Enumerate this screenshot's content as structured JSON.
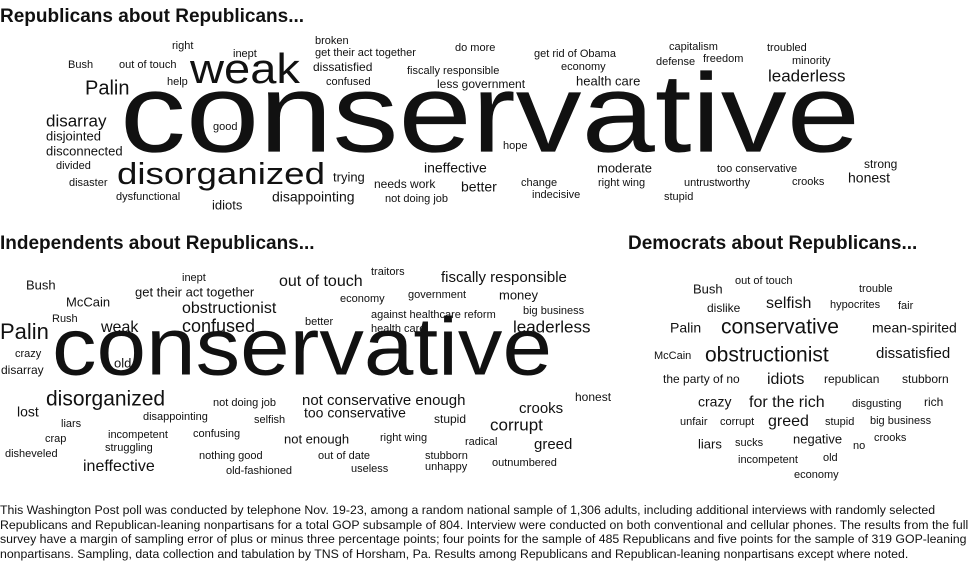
{
  "sections": [
    {
      "title": "Republicans about Republicans...",
      "words": [
        "right",
        "inept",
        "broken",
        "get their act together",
        "do more",
        "get rid of Obama",
        "capitalism",
        "troubled",
        "Bush",
        "out of touch",
        "dissatisfied",
        "fiscally responsible",
        "economy",
        "defense",
        "freedom",
        "minority",
        "weak",
        "help",
        "confused",
        "less government",
        "health care",
        "leaderless",
        "Palin",
        "conservative",
        "disarray",
        "good",
        "disjointed",
        "disconnected",
        "hope",
        "divided",
        "ineffective",
        "moderate",
        "too conservative",
        "strong",
        "disorganized",
        "trying",
        "needs work",
        "better",
        "change",
        "right wing",
        "untrustworthy",
        "crooks",
        "honest",
        "disaster",
        "dysfunctional",
        "disappointing",
        "not doing job",
        "indecisive",
        "stupid",
        "idiots"
      ]
    },
    {
      "title": "Independents about Republicans...",
      "words": [
        "traitors",
        "inept",
        "out of touch",
        "fiscally responsible",
        "Bush",
        "get their act together",
        "economy",
        "government",
        "money",
        "McCain",
        "obstructionist",
        "big business",
        "Rush",
        "against healthcare reform",
        "better",
        "weak",
        "confused",
        "health care",
        "leaderless",
        "Palin",
        "crazy",
        "old",
        "conservative",
        "disarray",
        "honest",
        "disorganized",
        "not doing job",
        "not conservative enough",
        "crooks",
        "lost",
        "disappointing",
        "too conservative",
        "selfish",
        "stupid",
        "corrupt",
        "liars",
        "incompetent",
        "confusing",
        "crap",
        "not enough",
        "right wing",
        "radical",
        "greed",
        "struggling",
        "disheveled",
        "nothing good",
        "out of date",
        "stubborn",
        "ineffective",
        "useless",
        "unhappy",
        "outnumbered",
        "old-fashioned"
      ]
    },
    {
      "title": "Democrats about Republicans...",
      "words": [
        "out of touch",
        "Bush",
        "trouble",
        "selfish",
        "dislike",
        "hypocrites",
        "fair",
        "Palin",
        "conservative",
        "mean-spirited",
        "McCain",
        "obstructionist",
        "dissatisfied",
        "the party of no",
        "idiots",
        "republican",
        "stubborn",
        "crazy",
        "for the rich",
        "disgusting",
        "rich",
        "unfair",
        "corrupt",
        "greed",
        "stupid",
        "big business",
        "liars",
        "sucks",
        "negative",
        "crooks",
        "no",
        "incompetent",
        "old",
        "economy"
      ]
    }
  ],
  "footnote": "This Washington Post poll was conducted by telephone Nov. 19-23,  among a random national sample of 1,306 adults, including additional interviews with randomly selected Republicans and Republican-leaning nonpartisans for a total GOP subsample of 804. Interview were conducted on both conventional and cellular phones. The results from the full survey have a margin of sampling error of plus or minus three percentage points; four points for the sample of 485 Republicans and five points for the sample of 319 GOP-leaning nonpartisans. Sampling, data collection and tabulation by TNS of Horsham, Pa. Results among Republicans and Republican-leaning nonpartisans except where noted."
}
